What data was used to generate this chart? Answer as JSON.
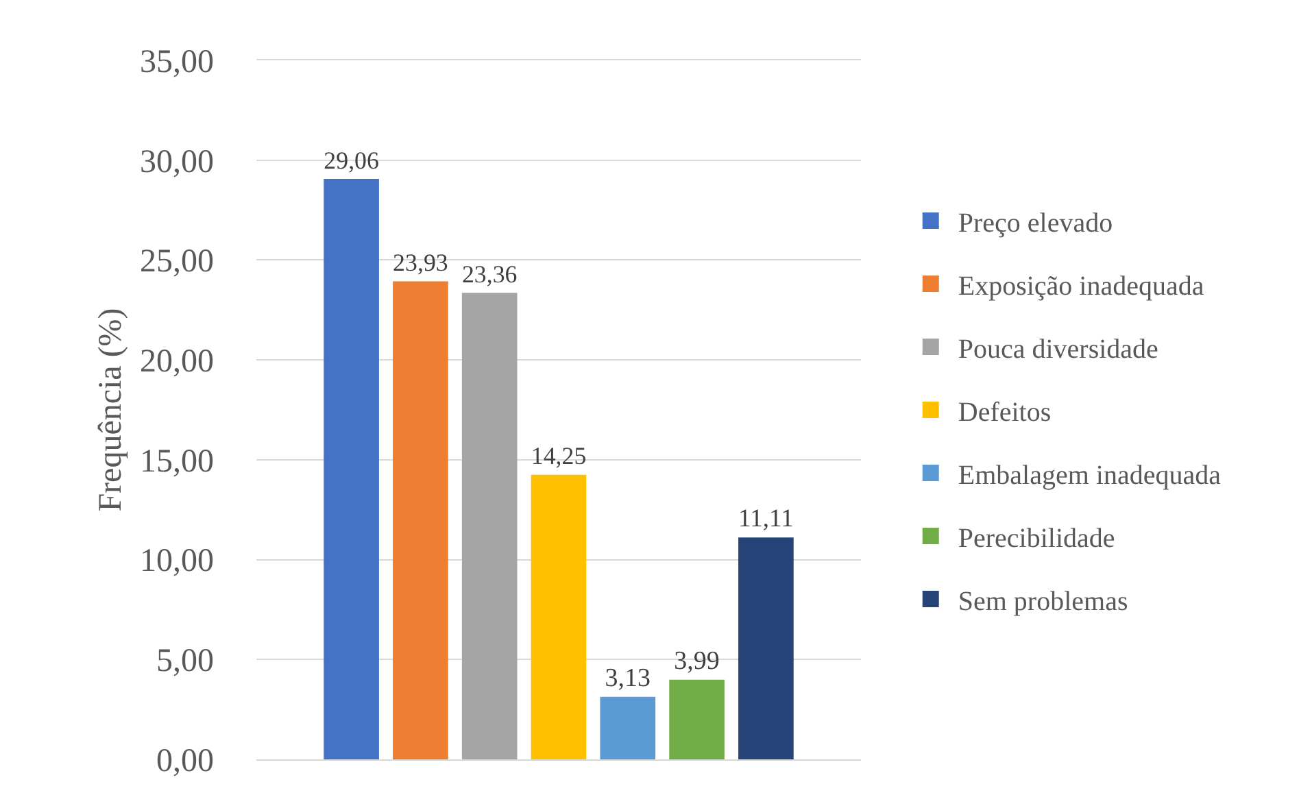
{
  "chart_data": {
    "type": "bar",
    "ylabel": "Frequência (%)",
    "categories": [
      null
    ],
    "series": [
      {
        "name": "Preço elevado",
        "color": "#4472c4",
        "values": [
          29.06
        ],
        "value_labels": [
          "29,06"
        ]
      },
      {
        "name": "Exposição inadequada",
        "color": "#ed7d31",
        "values": [
          23.93
        ],
        "value_labels": [
          "23,93"
        ]
      },
      {
        "name": "Pouca diversidade",
        "color": "#a5a5a5",
        "values": [
          23.36
        ],
        "value_labels": [
          "23,36"
        ]
      },
      {
        "name": "Defeitos",
        "color": "#ffc000",
        "values": [
          14.25
        ],
        "value_labels": [
          "14,25"
        ]
      },
      {
        "name": "Embalagem inadequada",
        "color": "#5b9bd5",
        "values": [
          3.13
        ],
        "value_labels": [
          "3,13"
        ]
      },
      {
        "name": "Perecibilidade",
        "color": "#70ad47",
        "values": [
          3.99
        ],
        "value_labels": [
          "3,99"
        ]
      },
      {
        "name": "Sem problemas",
        "color": "#264478",
        "values": [
          11.11
        ],
        "value_labels": [
          "11,11"
        ]
      }
    ],
    "ylim": [
      0,
      35
    ],
    "yticks": [
      {
        "value": 0,
        "label": "0,00"
      },
      {
        "value": 5,
        "label": "5,00"
      },
      {
        "value": 10,
        "label": "10,00"
      },
      {
        "value": 15,
        "label": "15,00"
      },
      {
        "value": 20,
        "label": "20,00"
      },
      {
        "value": 25,
        "label": "25,00"
      },
      {
        "value": 30,
        "label": "30,00"
      },
      {
        "value": 35,
        "label": "35,00"
      }
    ],
    "grid": "y",
    "legend": "right"
  }
}
